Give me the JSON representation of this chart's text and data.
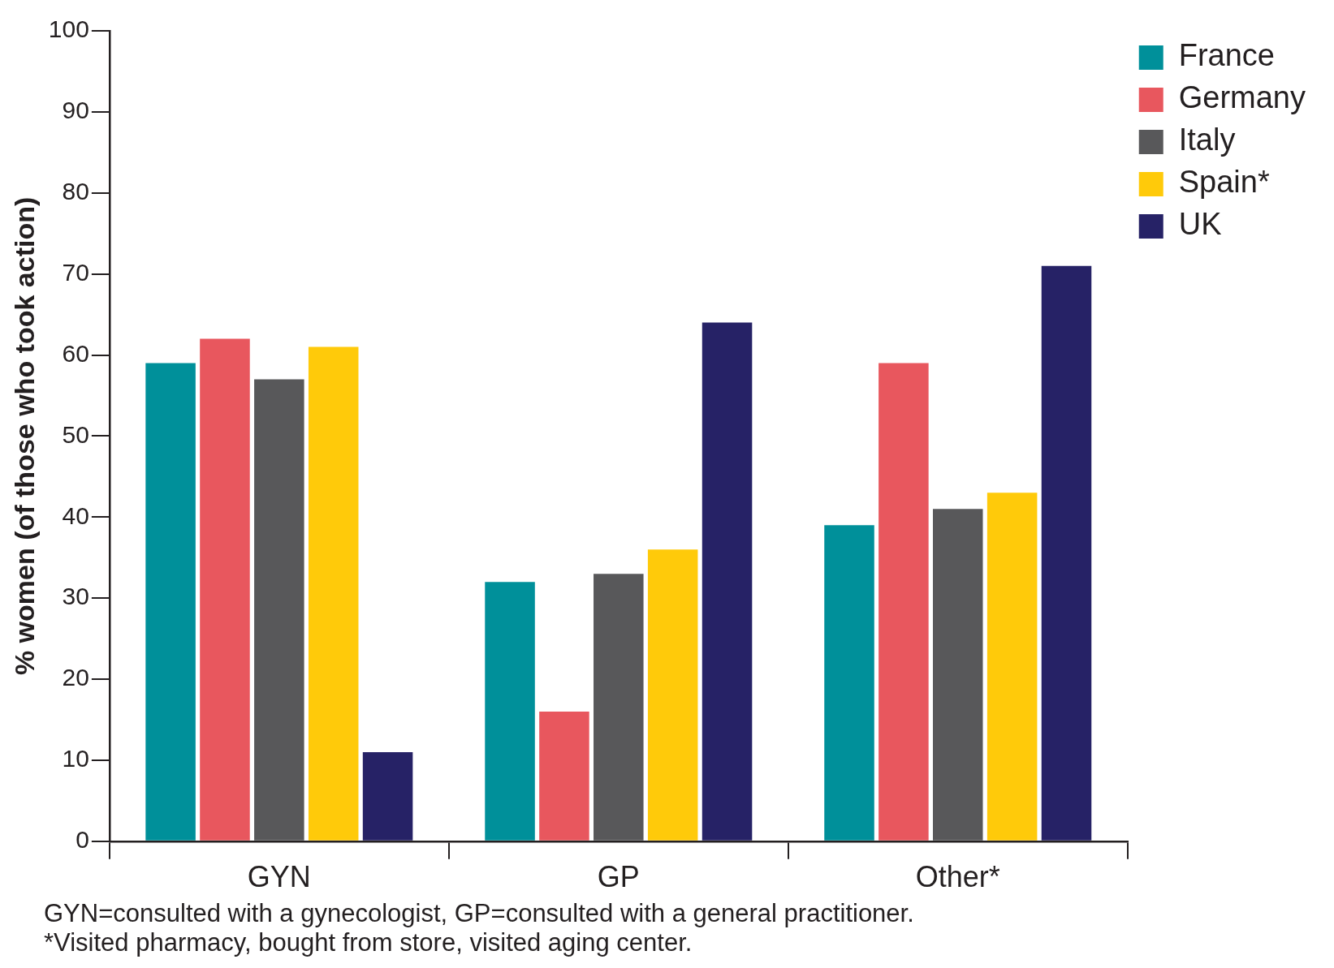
{
  "chart_data": {
    "type": "bar",
    "ylabel": "% women (of those who took action)",
    "categories": [
      "GYN",
      "GP",
      "Other*"
    ],
    "series": [
      {
        "name": "France",
        "color": "#00909a",
        "values": [
          59,
          32,
          39
        ]
      },
      {
        "name": "Germany",
        "color": "#e8575e",
        "values": [
          62,
          16,
          59
        ]
      },
      {
        "name": "Italy",
        "color": "#58585a",
        "values": [
          57,
          33,
          41
        ]
      },
      {
        "name": "Spain*",
        "color": "#ffca0a",
        "values": [
          61,
          36,
          43
        ]
      },
      {
        "name": "UK",
        "color": "#262266",
        "values": [
          11,
          64,
          71
        ]
      }
    ],
    "ylim": [
      0,
      100
    ],
    "yticks": [
      0,
      10,
      20,
      30,
      40,
      50,
      60,
      70,
      80,
      90,
      100
    ],
    "grid": false,
    "legend": "top right",
    "annotations": [
      "GYN=consulted with a gynecologist, GP=consulted with a general practitioner.",
      "*Visited pharmacy, bought from store, visited aging center."
    ]
  }
}
